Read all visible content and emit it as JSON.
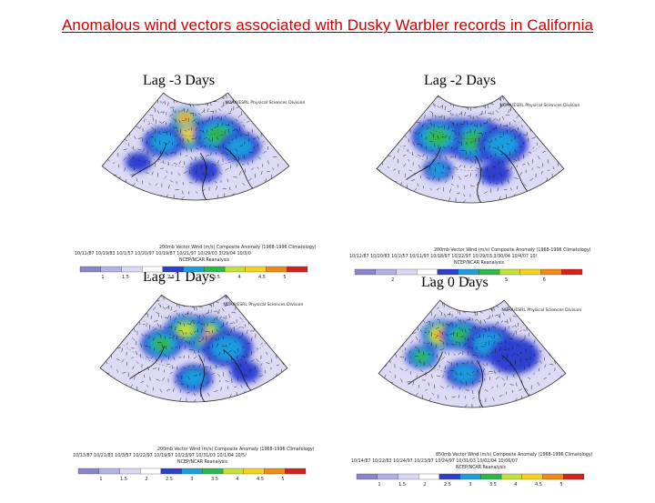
{
  "title": "Anomalous wind vectors associated with Dusky Warbler records in California",
  "panels": [
    {
      "id": "lag-minus-3",
      "label": "Lag -3 Days",
      "header": "NOAA/ESRL Physical Sciences Division",
      "caption_line1": "200mb Vector Wind (m/s) Composite Anomaly (1968-1996 Climatology)",
      "caption_line2": "10/11/87 10/19/83 10/1/57 10/20/97 10/19/87 10/21/97 10/29/03 3/29/04 10/3/0",
      "caption_line3": "NCEP/NCAR Reanalysis",
      "colorbar_ticks": [
        "1",
        "1.5",
        "2",
        "2.5",
        "3",
        "3.5",
        "4",
        "4.5",
        "5"
      ]
    },
    {
      "id": "lag-minus-2",
      "label": "Lag -2 Days",
      "header": "NOAA/ESRL Physical Sciences Division",
      "caption_line1": "200mb Vector Wind (m/s) Composite Anomaly (1968-1996 Climatology)",
      "caption_line2": "10/12/87 10/20/83 10/2/57 10/11/97 10/18/97 10/22/97 10/29/03 3/30/04 10/4/07 10/",
      "caption_line3": "NCEP/NCAR Reanalysis",
      "colorbar_ticks": [
        "2",
        "3",
        "4",
        "5",
        "6"
      ]
    },
    {
      "id": "lag-minus-1",
      "label": "Lag -1 Days",
      "header": "NOAA/ESRL Physical Sciences Division",
      "caption_line1": "200mb Vector Wind (m/s) Composite Anomaly (1968-1996 Climatology)",
      "caption_line2": "10/13/87 10/21/83 10/3/57 10/22/97 10/19/97 10/23/97 10/31/03 10/1/04 10/5/",
      "caption_line3": "NCEP/NCAR Reanalysis",
      "colorbar_ticks": [
        "1",
        "1.5",
        "2",
        "2.5",
        "3",
        "3.5",
        "4",
        "4.5",
        "5"
      ]
    },
    {
      "id": "lag-0",
      "label": "Lag 0 Days",
      "header": "NOAA/ESRL Physical Sciences Division",
      "caption_line1": "850mb Vector Wind (m/s) Composite Anomaly (1968-1996 Climatology)",
      "caption_line2": "10/14/87 10/22/83 10/24/97 10/23/97 10/24/97 10/31/03 10/02/04 10/06/07",
      "caption_line3": "NCEP/NCAR Reanalysis",
      "colorbar_ticks": [
        "1",
        "1.5",
        "2",
        "2.5",
        "3",
        "3.5",
        "4",
        "4.5",
        "5"
      ]
    }
  ],
  "colors": {
    "title": "#cc0000",
    "colorbar": [
      "#8a84c8",
      "#b2b0e6",
      "#d9d8f5",
      "#ffffff",
      "#2d3fd0",
      "#1e9ce0",
      "#2fb84a",
      "#c6e03a",
      "#f2d21c",
      "#ef8a16",
      "#d42218"
    ]
  }
}
